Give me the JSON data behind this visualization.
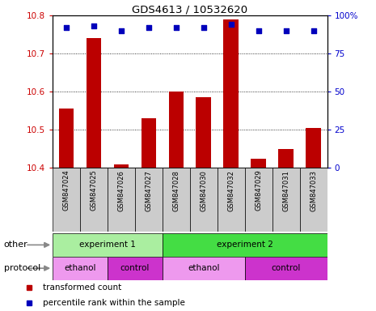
{
  "title": "GDS4613 / 10532620",
  "samples": [
    "GSM847024",
    "GSM847025",
    "GSM847026",
    "GSM847027",
    "GSM847028",
    "GSM847030",
    "GSM847032",
    "GSM847029",
    "GSM847031",
    "GSM847033"
  ],
  "transformed_counts": [
    10.555,
    10.74,
    10.41,
    10.53,
    10.6,
    10.585,
    10.79,
    10.425,
    10.45,
    10.505
  ],
  "percentile_ranks": [
    92,
    93,
    90,
    92,
    92,
    92,
    94,
    90,
    90,
    90
  ],
  "ylim": [
    10.4,
    10.8
  ],
  "yticks": [
    10.4,
    10.5,
    10.6,
    10.7,
    10.8
  ],
  "right_yticks": [
    0,
    25,
    50,
    75,
    100
  ],
  "right_ylim": [
    0,
    100
  ],
  "bar_color": "#bb0000",
  "dot_color": "#0000bb",
  "bar_bottom": 10.4,
  "experiment1_color": "#aaeea0",
  "experiment2_color": "#44dd44",
  "ethanol_color": "#ee99ee",
  "control_color": "#cc33cc",
  "other_label": "other",
  "protocol_label": "protocol",
  "experiment1_label": "experiment 1",
  "experiment2_label": "experiment 2",
  "ethanol_label": "ethanol",
  "control_label": "control",
  "legend_bar_label": "transformed count",
  "legend_dot_label": "percentile rank within the sample",
  "bg_color": "#ffffff",
  "tick_label_color_left": "#cc0000",
  "tick_label_color_right": "#0000cc",
  "experiment1_indices": [
    0,
    1,
    2,
    3
  ],
  "experiment2_indices": [
    4,
    5,
    6,
    7,
    8,
    9
  ],
  "ethanol1_indices": [
    0,
    1
  ],
  "control1_indices": [
    2,
    3
  ],
  "ethanol2_indices": [
    4,
    5,
    6
  ],
  "control2_indices": [
    7,
    8,
    9
  ],
  "gray_cell_color": "#cccccc",
  "right_tick_labels": [
    "0",
    "25",
    "50",
    "75",
    "100%"
  ]
}
